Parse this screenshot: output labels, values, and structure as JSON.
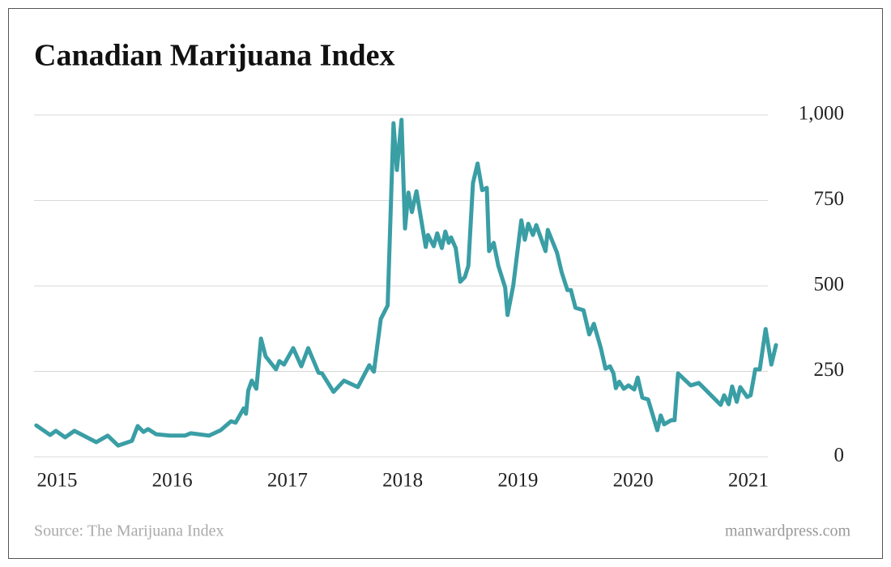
{
  "chart_data": {
    "type": "line",
    "title": "Canadian Marijuana Index",
    "source": "Source: The Marijuana Index",
    "credit": "manwardpress.com",
    "xlim": [
      2014.8,
      2021.17
    ],
    "xticks": [
      2015,
      2016,
      2017,
      2018,
      2019,
      2020,
      2021
    ],
    "ylim": [
      0,
      1000
    ],
    "yticks": [
      0,
      250,
      500,
      750,
      {
        "value": 1000,
        "label": "1,000"
      }
    ],
    "grid": true,
    "series": [
      {
        "name": "Canadian Marijuana Index",
        "color": "#3a9ea5",
        "x": [
          2014.82,
          2014.94,
          2014.99,
          2015.07,
          2015.15,
          2015.34,
          2015.44,
          2015.53,
          2015.65,
          2015.7,
          2015.75,
          2015.79,
          2015.86,
          2015.98,
          2016.11,
          2016.16,
          2016.32,
          2016.42,
          2016.51,
          2016.55,
          2016.62,
          2016.64,
          2016.66,
          2016.69,
          2016.73,
          2016.77,
          2016.81,
          2016.9,
          2016.93,
          2016.97,
          2017.05,
          2017.12,
          2017.18,
          2017.27,
          2017.3,
          2017.4,
          2017.49,
          2017.61,
          2017.71,
          2017.75,
          2017.81,
          2017.87,
          2017.92,
          2017.95,
          2017.99,
          2018.02,
          2018.05,
          2018.08,
          2018.12,
          2018.2,
          2018.22,
          2018.27,
          2018.3,
          2018.34,
          2018.37,
          2018.4,
          2018.42,
          2018.46,
          2018.5,
          2018.54,
          2018.57,
          2018.61,
          2018.65,
          2018.69,
          2018.73,
          2018.75,
          2018.79,
          2018.83,
          2018.89,
          2018.91,
          2018.96,
          2018.99,
          2019.03,
          2019.06,
          2019.09,
          2019.13,
          2019.16,
          2019.2,
          2019.24,
          2019.26,
          2019.34,
          2019.38,
          2019.43,
          2019.46,
          2019.5,
          2019.57,
          2019.62,
          2019.66,
          2019.72,
          2019.76,
          2019.8,
          2019.83,
          2019.85,
          2019.88,
          2019.92,
          2019.96,
          2020.01,
          2020.04,
          2020.08,
          2020.13,
          2020.21,
          2020.24,
          2020.27,
          2020.33,
          2020.36,
          2020.39,
          2020.45,
          2020.5,
          2020.57,
          2020.76,
          2020.79,
          2020.83,
          2020.86,
          2020.9,
          2020.93,
          2020.99,
          2021.02,
          2021.06,
          2021.1,
          2021.15,
          2021.2,
          2021.24
        ],
        "values": [
          92,
          64,
          76,
          57,
          76,
          43,
          62,
          33,
          47,
          90,
          73,
          81,
          66,
          62,
          62,
          69,
          62,
          78,
          104,
          100,
          142,
          126,
          194,
          223,
          199,
          346,
          294,
          256,
          280,
          270,
          318,
          265,
          318,
          246,
          244,
          190,
          223,
          204,
          268,
          249,
          403,
          443,
          976,
          839,
          986,
          668,
          773,
          716,
          777,
          614,
          649,
          616,
          654,
          611,
          659,
          626,
          642,
          611,
          512,
          526,
          559,
          801,
          858,
          780,
          787,
          602,
          626,
          559,
          495,
          415,
          502,
          583,
          692,
          635,
          682,
          649,
          678,
          640,
          602,
          664,
          597,
          540,
          488,
          488,
          436,
          429,
          358,
          389,
          318,
          258,
          265,
          244,
          201,
          220,
          199,
          209,
          197,
          232,
          173,
          168,
          78,
          121,
          95,
          107,
          107,
          244,
          225,
          209,
          216,
          152,
          180,
          154,
          206,
          161,
          204,
          175,
          180,
          256,
          256,
          374,
          270,
          327
        ]
      }
    ]
  }
}
